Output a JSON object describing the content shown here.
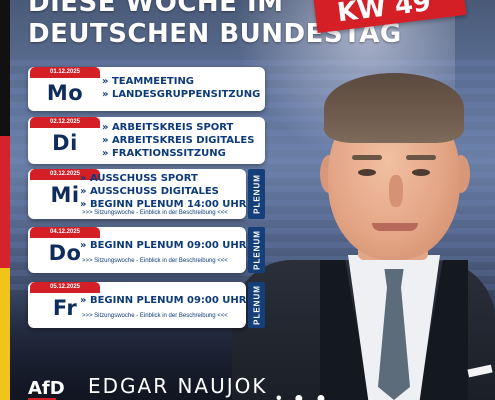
{
  "header": {
    "line1": "DIESE WOCHE IM",
    "line2": "DEUTSCHEN BUNDESTAG",
    "kw_label": "KW 49"
  },
  "schedule": [
    {
      "date": "01.12.2025",
      "day": "Mo",
      "items": [
        "» TEAMMEETING",
        "» LANDESGRUPPENSITZUNG"
      ],
      "note": "",
      "plenum": ""
    },
    {
      "date": "02.12.2025",
      "day": "Di",
      "items": [
        "» ARBEITSKREIS SPORT",
        "» ARBEITSKREIS DIGITALES",
        "» FRAKTIONSSITZUNG"
      ],
      "note": "",
      "plenum": ""
    },
    {
      "date": "03.12.2025",
      "day": "Mi",
      "items": [
        "» AUSSCHUSS SPORT",
        "» AUSSCHUSS DIGITALES",
        "» BEGINN PLENUM 14:00 UHR"
      ],
      "note": ">>> Sitzungswoche - Einblick in der Beschreibung <<<",
      "plenum": "PLENUM"
    },
    {
      "date": "04.12.2025",
      "day": "Do",
      "items": [
        "» BEGINN PLENUM 09:00 UHR"
      ],
      "note": ">>> Sitzungswoche - Einblick in der Beschreibung <<<",
      "plenum": "PLENUM"
    },
    {
      "date": "05.12.2025",
      "day": "Fr",
      "items": [
        "» BEGINN PLENUM 09:00 UHR"
      ],
      "note": ">>> Sitzungswoche - Einblick in der Beschreibung <<<",
      "plenum": "PLENUM"
    }
  ],
  "footer": {
    "party": "AfD",
    "name": "EDGAR NAUJOK",
    "marks": "• ● ●"
  },
  "colors": {
    "accent_red": "#d41f26",
    "navy": "#0d3a7a",
    "plenum_blue": "#143f7a"
  },
  "icons": [
    "flag-stripe",
    "portrait-photo"
  ]
}
